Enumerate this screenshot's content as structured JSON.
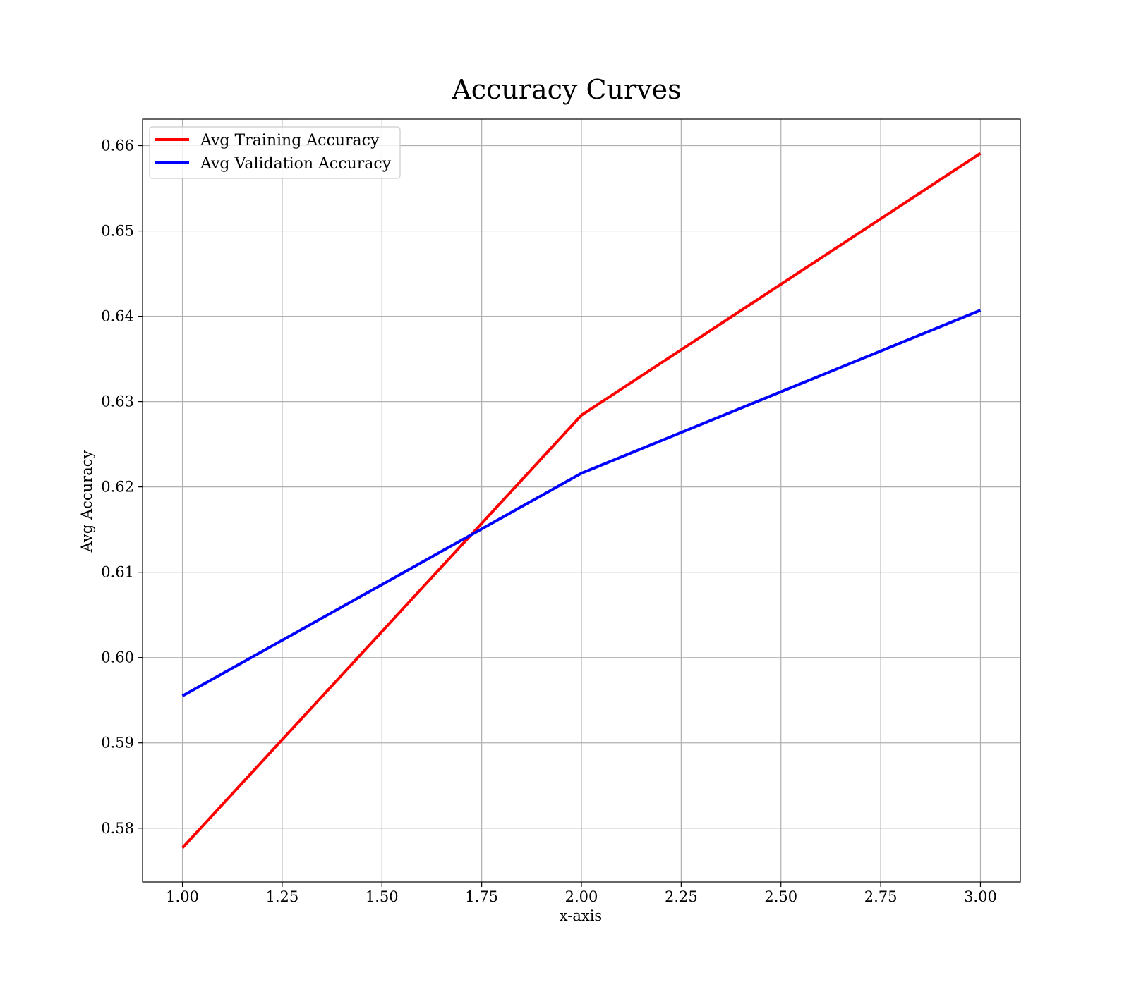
{
  "chart_data": {
    "type": "line",
    "title": "Accuracy Curves",
    "xlabel": "x-axis",
    "ylabel": "Avg Accuracy",
    "xlim": [
      0.9,
      3.1
    ],
    "ylim": [
      0.5737,
      0.6631
    ],
    "x_ticks": [
      1.0,
      1.25,
      1.5,
      1.75,
      2.0,
      2.25,
      2.5,
      2.75,
      3.0
    ],
    "x_tick_labels": [
      "1.00",
      "1.25",
      "1.50",
      "1.75",
      "2.00",
      "2.25",
      "2.50",
      "2.75",
      "3.00"
    ],
    "y_ticks": [
      0.58,
      0.59,
      0.6,
      0.61,
      0.62,
      0.63,
      0.64,
      0.65,
      0.66
    ],
    "y_tick_labels": [
      "0.58",
      "0.59",
      "0.60",
      "0.61",
      "0.62",
      "0.63",
      "0.64",
      "0.65",
      "0.66"
    ],
    "grid": true,
    "legend_position": "top-left",
    "x": [
      1,
      2,
      3
    ],
    "series": [
      {
        "name": "Avg Training Accuracy",
        "color": "#ff0000",
        "values": [
          0.5777,
          0.6284,
          0.6591
        ]
      },
      {
        "name": "Avg Validation Accuracy",
        "color": "#0000ff",
        "values": [
          0.5955,
          0.6216,
          0.6407
        ]
      }
    ]
  }
}
